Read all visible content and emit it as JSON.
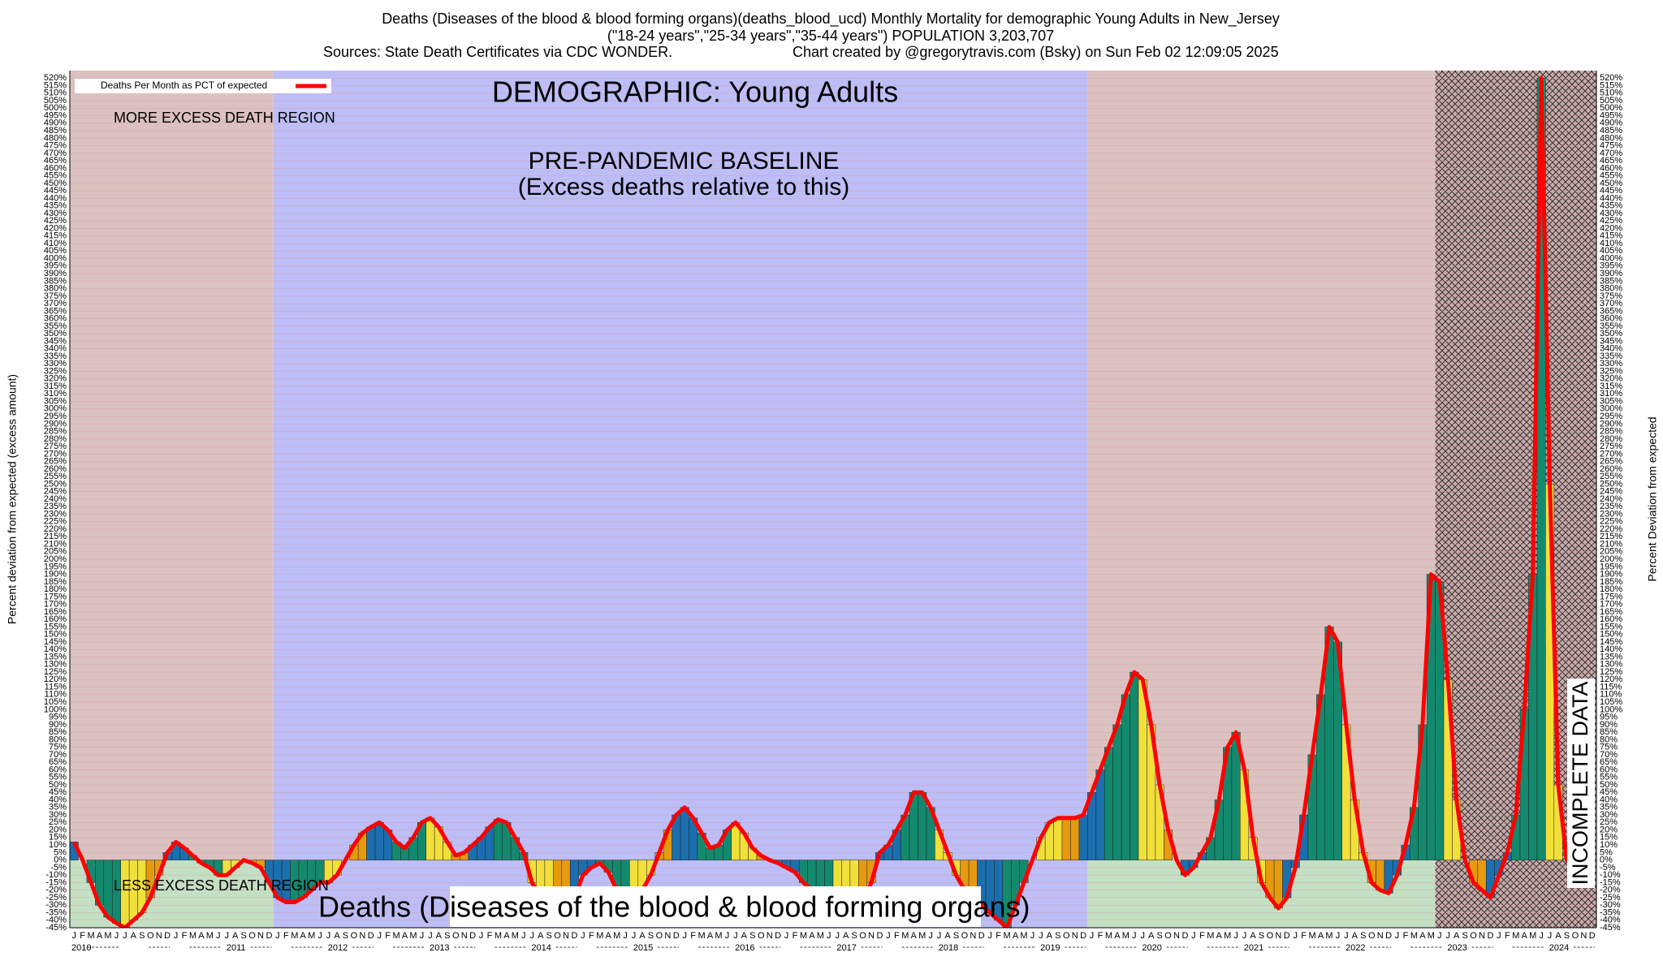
{
  "chart_data": {
    "type": "bar",
    "title": "Deaths (Diseases of the blood & blood forming organs)(deaths_blood_ucd) Monthly Mortality for demographic Young Adults in New_Jersey",
    "subtitle": "(\"18-24 years\",\"25-34 years\",\"35-44 years\") POPULATION 3,203,707",
    "sources": "Sources: State Death Certificates via CDC WONDER.",
    "credit": "Chart created by @gregorytravis.com (Bsky) on Sun Feb 02 12:09:05 2025",
    "y_label": "Percent deviation from expected (excess amount)",
    "y2_label": "Percent Deviation from expected",
    "annotations": {
      "demographic": "DEMOGRAPHIC: Young Adults",
      "more": "MORE EXCESS DEATH REGION",
      "baseline": "PRE-PANDEMIC BASELINE",
      "baseline_note": "(Excess deaths relative to this)",
      "less": "LESS EXCESS DEATH REGION",
      "cause": "Deaths (Diseases of the blood & blood forming organs)",
      "incomplete": "INCOMPLETE DATA"
    },
    "years": [
      "2010",
      "2011",
      "2012",
      "2013",
      "2014",
      "2015",
      "2016",
      "2017",
      "2018",
      "2019",
      "2020",
      "2021",
      "2022",
      "2023",
      "2024"
    ],
    "categories": [
      "J",
      "F",
      "M",
      "A",
      "M",
      "J",
      "J",
      "A",
      "S",
      "O",
      "N",
      "D",
      "J",
      "F",
      "M",
      "A",
      "M",
      "J",
      "J",
      "A",
      "S",
      "O",
      "N",
      "D",
      "J",
      "F",
      "M",
      "A",
      "M",
      "J",
      "J",
      "A",
      "S",
      "O",
      "N",
      "D",
      "J",
      "F",
      "M",
      "A",
      "M",
      "J",
      "J",
      "A",
      "S",
      "O",
      "N",
      "D",
      "J",
      "F",
      "M",
      "A",
      "M",
      "J",
      "J",
      "A",
      "S",
      "O",
      "N",
      "D",
      "J",
      "F",
      "M",
      "A",
      "M",
      "J",
      "J",
      "A",
      "S",
      "O",
      "N",
      "D",
      "J",
      "F",
      "M",
      "A",
      "M",
      "J",
      "J",
      "A",
      "S",
      "O",
      "N",
      "D",
      "J",
      "F",
      "M",
      "A",
      "M",
      "J",
      "J",
      "A",
      "S",
      "O",
      "N",
      "D",
      "J",
      "F",
      "M",
      "A",
      "M",
      "J",
      "J",
      "A",
      "S",
      "O",
      "N",
      "D",
      "J",
      "F",
      "M",
      "A",
      "M",
      "J",
      "J",
      "A",
      "S",
      "O",
      "N",
      "D",
      "J",
      "F",
      "M",
      "A",
      "M",
      "J",
      "J",
      "A",
      "S",
      "O",
      "N",
      "D",
      "J",
      "F",
      "M",
      "A",
      "M",
      "J",
      "J",
      "A",
      "S",
      "O",
      "N",
      "D",
      "J",
      "F",
      "M",
      "A",
      "M",
      "J",
      "J",
      "A",
      "S",
      "O",
      "N",
      "D",
      "J",
      "F",
      "M",
      "A",
      "M",
      "J",
      "J",
      "A",
      "S",
      "O",
      "N",
      "D",
      "J",
      "F",
      "M",
      "A",
      "M",
      "J",
      "J",
      "A",
      "S",
      "O",
      "N",
      "D"
    ],
    "series": [
      {
        "name": "Deaths Per Month as PCT of expected",
        "color": "#ff0000",
        "values": [
          12,
          0,
          -15,
          -30,
          -38,
          -42,
          -45,
          -40,
          -35,
          -25,
          -10,
          5,
          12,
          8,
          3,
          -2,
          -5,
          -10,
          -10,
          -5,
          0,
          -2,
          -5,
          -15,
          -25,
          -28,
          -28,
          -25,
          -20,
          -15,
          -15,
          -10,
          0,
          10,
          18,
          22,
          25,
          20,
          12,
          8,
          15,
          25,
          28,
          22,
          12,
          3,
          5,
          10,
          15,
          22,
          27,
          25,
          15,
          5,
          -15,
          -25,
          -30,
          -35,
          -30,
          -25,
          -10,
          -5,
          -2,
          -8,
          -20,
          -30,
          -25,
          -20,
          -10,
          5,
          20,
          30,
          35,
          28,
          18,
          8,
          10,
          20,
          25,
          18,
          8,
          3,
          0,
          -2,
          -5,
          -8,
          -15,
          -20,
          -28,
          -30,
          -30,
          -30,
          -30,
          -28,
          -15,
          5,
          10,
          20,
          30,
          45,
          45,
          35,
          20,
          5,
          -10,
          -20,
          -25,
          -30,
          -35,
          -40,
          -45,
          -30,
          -15,
          0,
          15,
          25,
          28,
          28,
          28,
          30,
          45,
          60,
          75,
          90,
          110,
          125,
          120,
          90,
          50,
          20,
          0,
          -10,
          -5,
          5,
          15,
          40,
          75,
          85,
          60,
          15,
          -15,
          -25,
          -32,
          -25,
          -5,
          30,
          70,
          110,
          155,
          145,
          90,
          40,
          5,
          -15,
          -20,
          -22,
          -10,
          10,
          35,
          90,
          190,
          185,
          120,
          40,
          0,
          -15,
          -20,
          -25,
          -10,
          5,
          30,
          100,
          190,
          520,
          250,
          50,
          0,
          0,
          0,
          0
        ]
      }
    ],
    "bar_colors": [
      "#1b6fae",
      "#1b6fae",
      "#138a6e",
      "#138a6e",
      "#138a6e",
      "#138a6e",
      "#f2e03a",
      "#f2e03a",
      "#f2e03a",
      "#e69a10",
      "#e69a10",
      "#1b6fae"
    ],
    "ylim": [
      -45,
      525
    ],
    "grid": true,
    "legend": "top-left",
    "yticks": [
      {
        "value": -45,
        "label": "-45%"
      },
      {
        "value": -40,
        "label": "-40%"
      },
      {
        "value": -35,
        "label": "-35%"
      },
      {
        "value": -30,
        "label": "-30%"
      },
      {
        "value": -25,
        "label": "-25%"
      },
      {
        "value": -20,
        "label": "-20%"
      },
      {
        "value": -15,
        "label": "-15%"
      },
      {
        "value": -10,
        "label": "-10%"
      },
      {
        "value": -5,
        "label": "-5%"
      },
      {
        "value": 0,
        "label": "0%"
      },
      {
        "value": 5,
        "label": "5%"
      },
      {
        "value": 10,
        "label": "10%"
      },
      {
        "value": 15,
        "label": "15%"
      },
      {
        "value": 20,
        "label": "20%"
      },
      {
        "value": 25,
        "label": "25%"
      },
      {
        "value": 30,
        "label": "30%"
      },
      {
        "value": 35,
        "label": "35%"
      },
      {
        "value": 40,
        "label": "40%"
      },
      {
        "value": 45,
        "label": "45%"
      },
      {
        "value": 50,
        "label": "50%"
      },
      {
        "value": 55,
        "label": "55%"
      },
      {
        "value": 60,
        "label": "60%"
      },
      {
        "value": 65,
        "label": "65%"
      },
      {
        "value": 70,
        "label": "70%"
      },
      {
        "value": 75,
        "label": "75%"
      },
      {
        "value": 80,
        "label": "80%"
      },
      {
        "value": 85,
        "label": "85%"
      },
      {
        "value": 90,
        "label": "90%"
      },
      {
        "value": 95,
        "label": "95%"
      },
      {
        "value": 100,
        "label": "100%"
      },
      {
        "value": 105,
        "label": "105%"
      },
      {
        "value": 110,
        "label": "110%"
      },
      {
        "value": 115,
        "label": "115%"
      },
      {
        "value": 120,
        "label": "120%"
      },
      {
        "value": 125,
        "label": "125%"
      },
      {
        "value": 130,
        "label": "130%"
      },
      {
        "value": 135,
        "label": "135%"
      },
      {
        "value": 140,
        "label": "140%"
      },
      {
        "value": 145,
        "label": "145%"
      },
      {
        "value": 150,
        "label": "150%"
      },
      {
        "value": 155,
        "label": "155%"
      },
      {
        "value": 160,
        "label": "160%"
      },
      {
        "value": 165,
        "label": "165%"
      },
      {
        "value": 170,
        "label": "170%"
      },
      {
        "value": 175,
        "label": "175%"
      },
      {
        "value": 180,
        "label": "180%"
      },
      {
        "value": 185,
        "label": "185%"
      },
      {
        "value": 190,
        "label": "190%"
      },
      {
        "value": 195,
        "label": "195%"
      },
      {
        "value": 200,
        "label": "200%"
      },
      {
        "value": 205,
        "label": "205%"
      },
      {
        "value": 210,
        "label": "210%"
      },
      {
        "value": 215,
        "label": "215%"
      },
      {
        "value": 220,
        "label": "220%"
      },
      {
        "value": 225,
        "label": "225%"
      },
      {
        "value": 230,
        "label": "230%"
      },
      {
        "value": 235,
        "label": "235%"
      },
      {
        "value": 240,
        "label": "240%"
      },
      {
        "value": 245,
        "label": "245%"
      },
      {
        "value": 250,
        "label": "250%"
      },
      {
        "value": 255,
        "label": "255%"
      },
      {
        "value": 260,
        "label": "260%"
      },
      {
        "value": 265,
        "label": "265%"
      },
      {
        "value": 270,
        "label": "270%"
      },
      {
        "value": 275,
        "label": "275%"
      },
      {
        "value": 280,
        "label": "280%"
      },
      {
        "value": 285,
        "label": "285%"
      },
      {
        "value": 290,
        "label": "290%"
      },
      {
        "value": 295,
        "label": "295%"
      },
      {
        "value": 300,
        "label": "300%"
      },
      {
        "value": 305,
        "label": "305%"
      },
      {
        "value": 310,
        "label": "310%"
      },
      {
        "value": 315,
        "label": "315%"
      },
      {
        "value": 320,
        "label": "320%"
      },
      {
        "value": 325,
        "label": "325%"
      },
      {
        "value": 330,
        "label": "330%"
      },
      {
        "value": 335,
        "label": "335%"
      },
      {
        "value": 340,
        "label": "340%"
      },
      {
        "value": 345,
        "label": "345%"
      },
      {
        "value": 350,
        "label": "350%"
      },
      {
        "value": 355,
        "label": "355%"
      },
      {
        "value": 360,
        "label": "360%"
      },
      {
        "value": 365,
        "label": "365%"
      },
      {
        "value": 370,
        "label": "370%"
      },
      {
        "value": 375,
        "label": "375%"
      },
      {
        "value": 380,
        "label": "380%"
      },
      {
        "value": 385,
        "label": "385%"
      },
      {
        "value": 390,
        "label": "390%"
      },
      {
        "value": 395,
        "label": "395%"
      },
      {
        "value": 400,
        "label": "400%"
      },
      {
        "value": 405,
        "label": "405%"
      },
      {
        "value": 410,
        "label": "410%"
      },
      {
        "value": 415,
        "label": "415%"
      },
      {
        "value": 420,
        "label": "420%"
      },
      {
        "value": 425,
        "label": "425%"
      },
      {
        "value": 430,
        "label": "430%"
      },
      {
        "value": 435,
        "label": "435%"
      },
      {
        "value": 440,
        "label": "440%"
      },
      {
        "value": 445,
        "label": "445%"
      },
      {
        "value": 450,
        "label": "450%"
      },
      {
        "value": 455,
        "label": "455%"
      },
      {
        "value": 460,
        "label": "460%"
      },
      {
        "value": 465,
        "label": "465%"
      },
      {
        "value": 470,
        "label": "470%"
      },
      {
        "value": 475,
        "label": "475%"
      },
      {
        "value": 480,
        "label": "480%"
      },
      {
        "value": 485,
        "label": "485%"
      },
      {
        "value": 490,
        "label": "490%"
      },
      {
        "value": 495,
        "label": "495%"
      },
      {
        "value": 500,
        "label": "500%"
      },
      {
        "value": 505,
        "label": "505%"
      },
      {
        "value": 510,
        "label": "510%"
      },
      {
        "value": 515,
        "label": "515%"
      },
      {
        "value": 520,
        "label": "520%"
      }
    ]
  }
}
